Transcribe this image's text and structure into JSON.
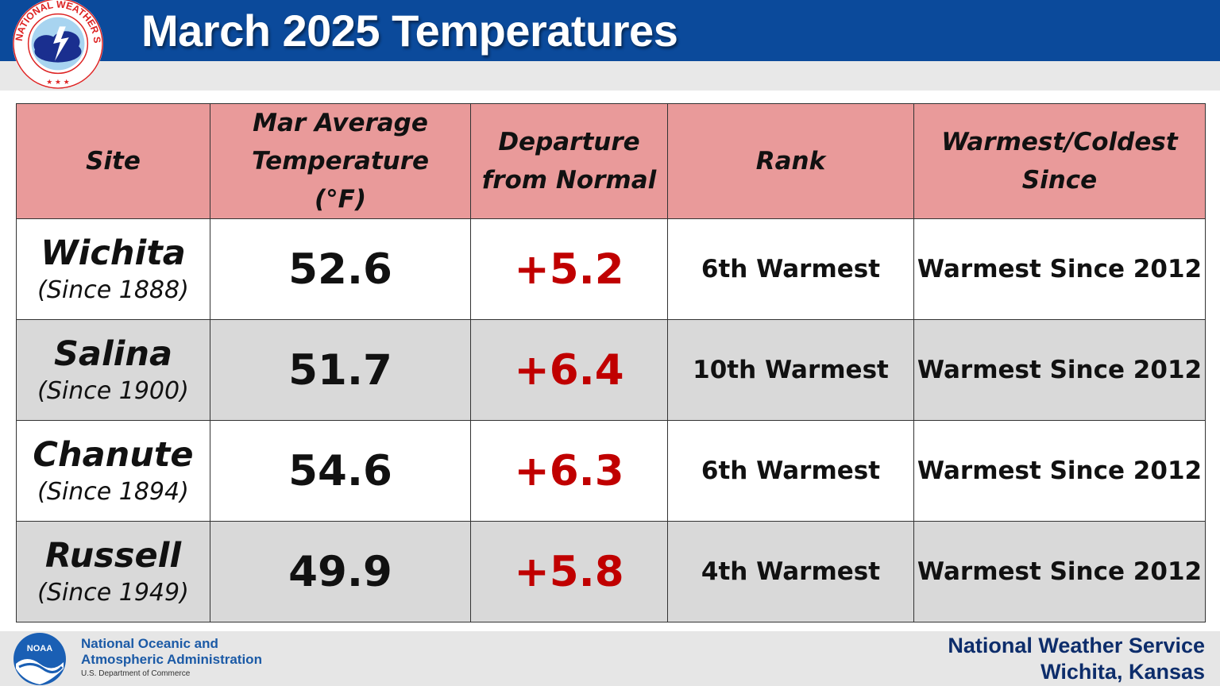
{
  "header": {
    "title": "March 2025 Temperatures",
    "logo_text": "NATIONAL WEATHER SERVICE"
  },
  "table": {
    "columns": [
      "Site",
      "Mar Average Temperature (°F)",
      "Departure from Normal",
      "Rank",
      "Warmest/Coldest Since"
    ],
    "rows": [
      {
        "site": "Wichita",
        "since": "(Since 1888)",
        "average": "52.6",
        "departure": "+5.2",
        "rank": "6th Warmest",
        "extreme_since": "Warmest Since 2012"
      },
      {
        "site": "Salina",
        "since": "(Since 1900)",
        "average": "51.7",
        "departure": "+6.4",
        "rank": "10th Warmest",
        "extreme_since": "Warmest Since 2012"
      },
      {
        "site": "Chanute",
        "since": "(Since 1894)",
        "average": "54.6",
        "departure": "+6.3",
        "rank": "6th Warmest",
        "extreme_since": "Warmest Since 2012"
      },
      {
        "site": "Russell",
        "since": "(Since 1949)",
        "average": "49.9",
        "departure": "+5.8",
        "rank": "4th Warmest",
        "extreme_since": "Warmest Since 2012"
      }
    ]
  },
  "footer": {
    "noaa_logo_text": "NOAA",
    "noaa_name": "National Oceanic and Atmospheric Administration",
    "noaa_dept": "U.S. Department of Commerce",
    "office_line1": "National Weather Service",
    "office_line2": "Wichita, Kansas"
  },
  "colors": {
    "header_blue": "#0b4a9b",
    "header_row": "#e99a9a",
    "departure_red": "#c00000",
    "alt_row": "#d9d9d9"
  }
}
